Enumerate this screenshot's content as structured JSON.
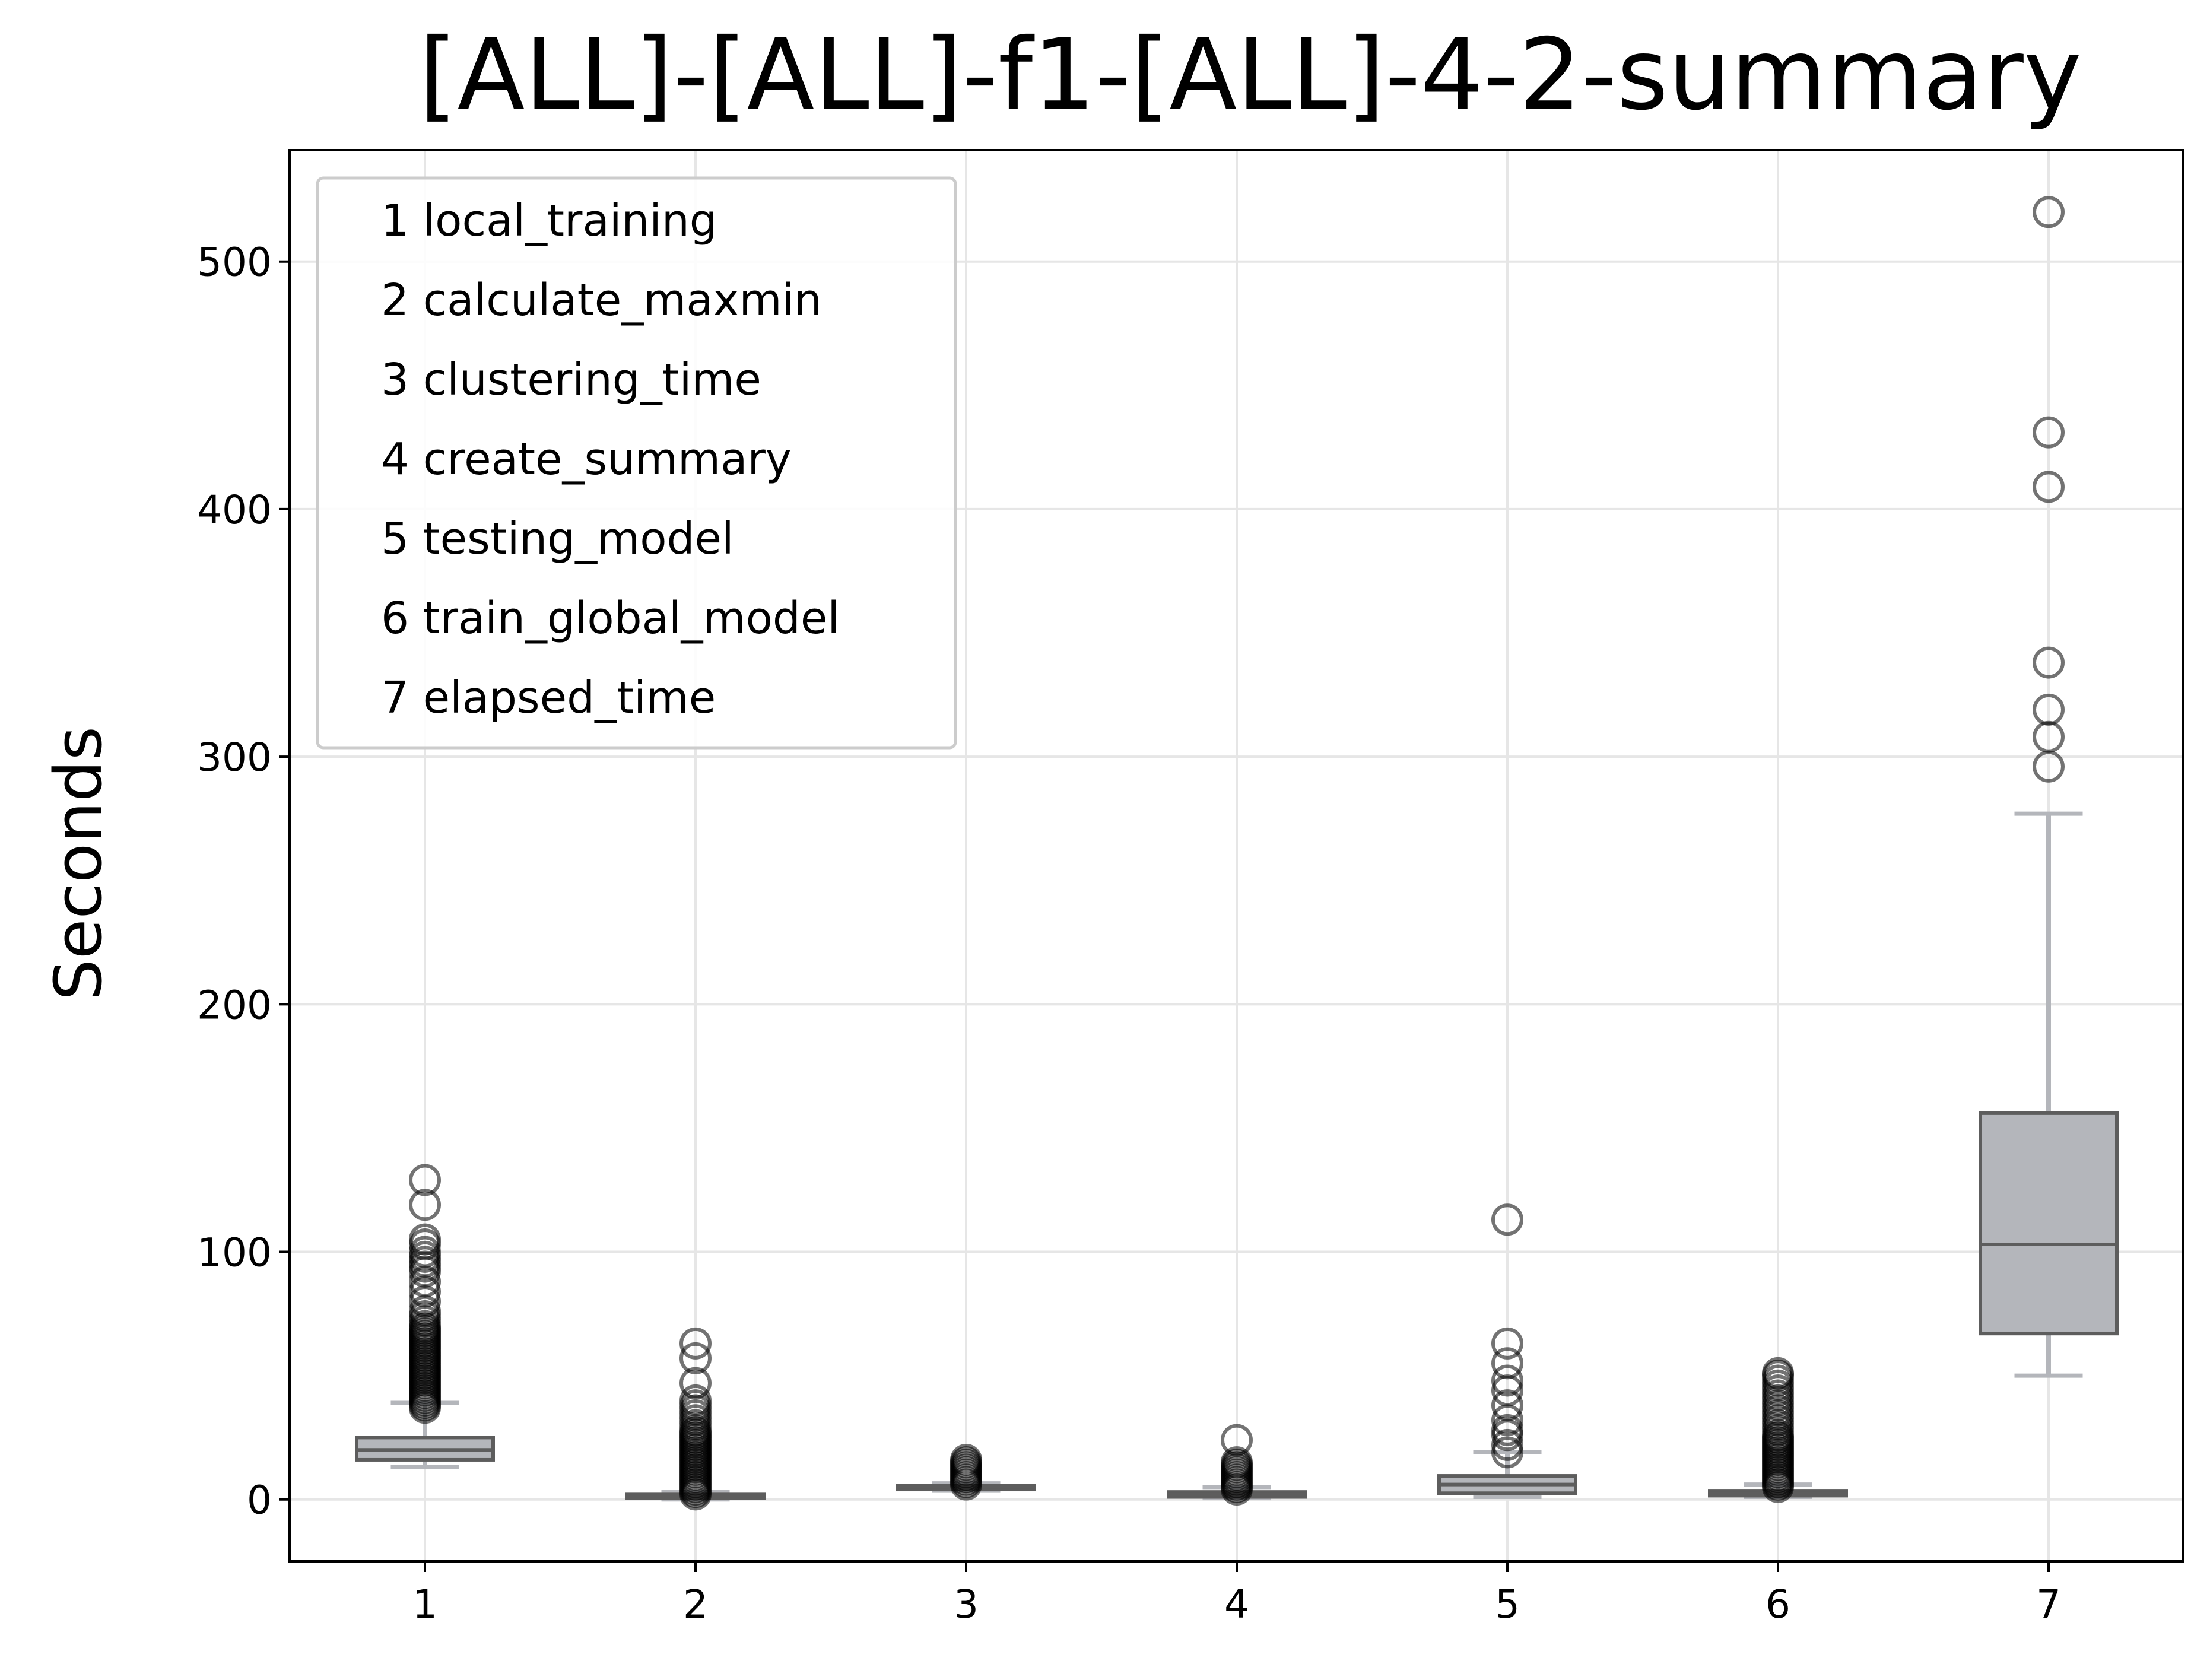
{
  "chart_data": {
    "type": "box",
    "title": "[ALL]-[ALL]-f1-[ALL]-4-2-summary",
    "xlabel": "",
    "ylabel": "Seconds",
    "ylim": [
      -25,
      545
    ],
    "y_ticks": [
      0,
      100,
      200,
      300,
      400,
      500
    ],
    "categories": [
      "1",
      "2",
      "3",
      "4",
      "5",
      "6",
      "7"
    ],
    "grid": true,
    "legend_position": "upper-left",
    "legend": [
      "1 local_training",
      "2 calculate_maxmin",
      "3 clustering_time",
      "4 create_summary",
      "5 testing_model",
      "6 train_global_model",
      "7 elapsed_time"
    ],
    "boxes": [
      {
        "category": "1",
        "q1": 16,
        "median": 20,
        "q3": 25,
        "whisker_low": 13,
        "whisker_high": 39,
        "outliers": [
          37,
          38,
          39,
          40,
          41,
          42,
          43,
          44,
          45,
          46,
          47,
          48,
          49,
          50,
          51,
          52,
          53,
          54,
          55,
          56,
          57,
          58,
          59,
          60,
          61,
          62,
          63,
          64,
          65,
          66,
          67,
          68,
          69,
          70,
          72,
          74,
          76,
          80,
          84,
          88,
          92,
          94,
          96,
          98,
          100,
          103,
          105,
          119,
          129
        ]
      },
      {
        "category": "2",
        "q1": 0.5,
        "median": 1,
        "q3": 2,
        "whisker_low": 0,
        "whisker_high": 3,
        "outliers": [
          2,
          3,
          4,
          5,
          6,
          7,
          8,
          9,
          10,
          11,
          12,
          13,
          14,
          15,
          16,
          17,
          18,
          19,
          20,
          21,
          22,
          23,
          24,
          25,
          26,
          27,
          28,
          30,
          32,
          34,
          36,
          38,
          40,
          47,
          57,
          63
        ]
      },
      {
        "category": "3",
        "q1": 4,
        "median": 5,
        "q3": 5.5,
        "whisker_low": 3.5,
        "whisker_high": 6.5,
        "outliers": [
          6,
          7,
          8,
          9,
          10,
          11,
          12,
          13,
          14,
          15,
          16
        ]
      },
      {
        "category": "4",
        "q1": 1,
        "median": 2,
        "q3": 3,
        "whisker_low": 0.5,
        "whisker_high": 5,
        "outliers": [
          4,
          5,
          6,
          7,
          8,
          9,
          10,
          11,
          12,
          13,
          14,
          15,
          24
        ]
      },
      {
        "category": "5",
        "q1": 2.5,
        "median": 6,
        "q3": 9.5,
        "whisker_low": 1,
        "whisker_high": 19,
        "outliers": [
          19,
          22,
          26,
          28,
          32,
          38,
          44,
          48,
          55,
          63,
          113
        ]
      },
      {
        "category": "6",
        "q1": 1.5,
        "median": 2.5,
        "q3": 3.5,
        "whisker_low": 1,
        "whisker_high": 6,
        "outliers": [
          5,
          6,
          7,
          8,
          9,
          10,
          11,
          12,
          13,
          14,
          15,
          16,
          17,
          18,
          19,
          20,
          21,
          22,
          23,
          24,
          25,
          26,
          28,
          30,
          32,
          34,
          36,
          38,
          40,
          42,
          44,
          46,
          48,
          50,
          51
        ]
      },
      {
        "category": "7",
        "q1": 67,
        "median": 103,
        "q3": 156,
        "whisker_low": 50,
        "whisker_high": 277,
        "outliers": [
          296,
          308,
          319,
          338,
          409,
          431,
          520
        ]
      }
    ],
    "colors": {
      "box_fill": "#b4b6bb",
      "box_edge": "#5d5d5d",
      "whisker": "#b4b6bb",
      "outlier_edge": "#000000",
      "grid": "#e6e6e6",
      "axis": "#000000",
      "legend_edge": "#cccccc"
    }
  }
}
